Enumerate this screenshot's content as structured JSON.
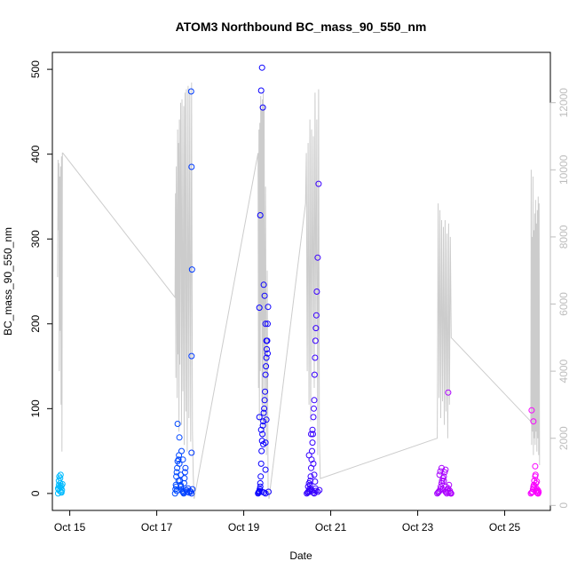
{
  "chart_data": {
    "type": "scatter",
    "title": "ATOM3 Northbound BC_mass_90_550_nm",
    "xlabel": "Date",
    "ylabel": "BC_mass_90_550_nm",
    "xlim": [
      14.6,
      26.05
    ],
    "ylim": [
      -20,
      520
    ],
    "y2lim": [
      -150,
      13500
    ],
    "x_ticks": [
      {
        "value": 15,
        "label": "Oct 15"
      },
      {
        "value": 17,
        "label": "Oct 17"
      },
      {
        "value": 19,
        "label": "Oct 19"
      },
      {
        "value": 21,
        "label": "Oct 21"
      },
      {
        "value": 23,
        "label": "Oct 23"
      },
      {
        "value": 25,
        "label": "Oct 25"
      }
    ],
    "y_ticks": [
      0,
      100,
      200,
      300,
      400,
      500
    ],
    "y2_ticks": [
      0,
      2000,
      4000,
      6000,
      8000,
      10000,
      12000
    ],
    "colors": {
      "start": "#00bfff",
      "mid": "#0000ff",
      "end": "#ff00ff",
      "line": "#cccccc",
      "right_axis": "#bdbdbd"
    },
    "series": [
      {
        "kind": "points",
        "x": [
          14.73,
          14.74,
          14.75,
          14.75,
          14.76,
          14.77,
          14.77,
          14.78,
          14.79,
          14.8,
          14.8,
          14.81,
          14.82,
          14.83,
          14.73,
          14.78,
          14.81,
          17.42,
          17.43,
          17.44,
          17.45,
          17.46,
          17.47,
          17.48,
          17.5,
          17.51,
          17.52,
          17.53,
          17.55,
          17.56,
          17.57,
          17.58,
          17.6,
          17.61,
          17.62,
          17.63,
          17.64,
          17.65,
          17.66,
          17.68,
          17.7,
          17.72,
          17.74,
          17.76,
          17.78,
          17.8,
          17.82,
          17.48,
          17.52,
          17.57,
          17.79,
          17.8,
          17.81,
          17.8,
          17.8,
          17.6,
          17.55,
          17.5,
          17.45,
          17.46,
          19.33,
          19.34,
          19.35,
          19.36,
          19.37,
          19.38,
          19.39,
          19.4,
          19.41,
          19.42,
          19.43,
          19.44,
          19.45,
          19.46,
          19.47,
          19.48,
          19.49,
          19.5,
          19.51,
          19.52,
          19.53,
          19.54,
          19.55,
          19.56,
          19.57,
          19.36,
          19.38,
          19.4,
          19.42,
          19.44,
          19.46,
          19.48,
          19.5,
          19.52,
          19.55,
          19.38,
          19.45,
          19.5,
          19.52,
          19.36,
          19.4,
          19.5,
          19.42,
          19.47,
          19.5,
          20.45,
          20.47,
          20.48,
          20.5,
          20.51,
          20.52,
          20.53,
          20.54,
          20.55,
          20.56,
          20.57,
          20.58,
          20.59,
          20.6,
          20.61,
          20.62,
          20.63,
          20.64,
          20.65,
          20.66,
          20.67,
          20.68,
          20.7,
          20.72,
          20.74,
          20.48,
          20.5,
          20.52,
          20.55,
          20.57,
          20.6,
          20.62,
          20.65,
          20.5,
          20.55,
          20.58,
          20.6,
          20.62,
          20.64,
          20.66,
          20.7,
          23.45,
          23.47,
          23.48,
          23.5,
          23.52,
          23.53,
          23.55,
          23.56,
          23.58,
          23.6,
          23.62,
          23.64,
          23.65,
          23.67,
          23.68,
          23.7,
          23.72,
          23.74,
          23.75,
          23.77,
          23.5,
          23.55,
          23.6,
          23.65,
          23.7,
          23.52,
          23.58,
          23.64,
          23.7,
          23.76,
          25.6,
          25.62,
          25.64,
          25.65,
          25.66,
          25.67,
          25.68,
          25.7,
          25.71,
          25.72,
          25.73,
          25.74,
          25.75,
          25.76,
          25.77,
          25.78,
          25.62,
          25.66,
          25.7,
          25.74,
          25.68,
          25.72,
          25.74,
          25.76,
          25.64
        ],
        "y": [
          0,
          5,
          10,
          15,
          20,
          3,
          8,
          12,
          22,
          2,
          7,
          1,
          4,
          11,
          6,
          18,
          9,
          0,
          5,
          10,
          20,
          25,
          30,
          38,
          40,
          45,
          35,
          15,
          10,
          8,
          5,
          3,
          2,
          1,
          0,
          12,
          18,
          25,
          30,
          4,
          2,
          6,
          1,
          3,
          2,
          0,
          5,
          82,
          66,
          50,
          474,
          385,
          264,
          162,
          48,
          40,
          22,
          15,
          8,
          3,
          0,
          1,
          2,
          3,
          5,
          12,
          20,
          35,
          50,
          62,
          70,
          80,
          85,
          95,
          100,
          110,
          120,
          140,
          150,
          160,
          170,
          180,
          200,
          220,
          2,
          219,
          328,
          475,
          502,
          455,
          246,
          233,
          200,
          180,
          165,
          8,
          58,
          28,
          87,
          90,
          75,
          60,
          2,
          1,
          0,
          0,
          1,
          2,
          3,
          5,
          10,
          15,
          20,
          30,
          40,
          50,
          60,
          70,
          90,
          100,
          110,
          140,
          160,
          180,
          195,
          210,
          238,
          278,
          365,
          4,
          8,
          12,
          2,
          5,
          3,
          1,
          0,
          6,
          45,
          70,
          75,
          35,
          22,
          14,
          3,
          2,
          0,
          1,
          2,
          3,
          5,
          8,
          12,
          15,
          18,
          20,
          25,
          28,
          2,
          0,
          4,
          6,
          10,
          3,
          1,
          0,
          22,
          30,
          15,
          8,
          119,
          26,
          5,
          2,
          1,
          0,
          0,
          1,
          2,
          5,
          8,
          10,
          15,
          20,
          22,
          12,
          6,
          3,
          1,
          4,
          0,
          2,
          98,
          85,
          32,
          14,
          7,
          3,
          1,
          0,
          2
        ]
      },
      {
        "kind": "line",
        "axis": "right",
        "x": [
          14.72,
          14.73,
          14.74,
          14.75,
          14.76,
          14.77,
          14.78,
          14.79,
          14.8,
          14.81,
          14.82,
          14.83,
          14.84,
          17.42,
          17.43,
          17.44,
          17.45,
          17.46,
          17.47,
          17.48,
          17.49,
          17.5,
          17.51,
          17.52,
          17.53,
          17.55,
          17.57,
          17.58,
          17.6,
          17.62,
          17.63,
          17.65,
          17.67,
          17.68,
          17.7,
          17.72,
          17.74,
          17.76,
          17.78,
          17.8,
          17.82,
          17.84,
          17.86,
          19.33,
          19.34,
          19.35,
          19.36,
          19.37,
          19.38,
          19.39,
          19.4,
          19.41,
          19.42,
          19.43,
          19.44,
          19.45,
          19.46,
          19.47,
          19.48,
          19.5,
          19.52,
          19.54,
          19.56,
          19.58,
          20.42,
          20.44,
          20.46,
          20.48,
          20.5,
          20.52,
          20.54,
          20.56,
          20.58,
          20.6,
          20.62,
          20.64,
          20.66,
          20.68,
          20.7,
          20.72,
          20.74,
          20.76,
          23.45,
          23.47,
          23.49,
          23.51,
          23.53,
          23.55,
          23.57,
          23.59,
          23.61,
          23.63,
          23.65,
          23.67,
          23.69,
          23.71,
          23.73,
          23.75,
          23.77,
          25.6,
          25.61,
          25.62,
          25.63,
          25.64,
          25.65,
          25.66,
          25.67,
          25.68,
          25.69,
          25.7,
          25.71,
          25.72,
          25.73,
          25.74,
          25.75,
          25.76,
          25.77,
          25.78,
          25.79,
          25.8
        ],
        "y": [
          6800,
          10300,
          8200,
          10200,
          4000,
          9800,
          5200,
          10100,
          3000,
          10400,
          1600,
          10500,
          10500,
          6200,
          9300,
          3800,
          10100,
          8000,
          3200,
          11200,
          4500,
          10800,
          2200,
          11500,
          4200,
          12000,
          2400,
          12100,
          3400,
          11900,
          1800,
          12300,
          2800,
          12400,
          1600,
          12500,
          2600,
          12400,
          1900,
          12600,
          2200,
          900,
          200,
          10500,
          3500,
          11200,
          2500,
          11400,
          4000,
          12200,
          5500,
          11800,
          3000,
          12100,
          2000,
          12300,
          4500,
          11900,
          2500,
          9500,
          1500,
          7000,
          500,
          200,
          9000,
          10500,
          4000,
          10800,
          3000,
          11500,
          2500,
          11200,
          4500,
          11000,
          3500,
          12300,
          5000,
          11500,
          1500,
          12400,
          2000,
          800,
          2000,
          9000,
          3200,
          8800,
          2600,
          8500,
          3100,
          8300,
          2400,
          8500,
          2800,
          8100,
          2000,
          8400,
          3000,
          8000,
          5000,
          2500,
          10000,
          1800,
          8000,
          2200,
          9800,
          1500,
          8200,
          2000,
          8700,
          1800,
          9100,
          2200,
          8400,
          1600,
          8800,
          2000,
          9200,
          1500,
          9000,
          1200
        ]
      }
    ]
  }
}
